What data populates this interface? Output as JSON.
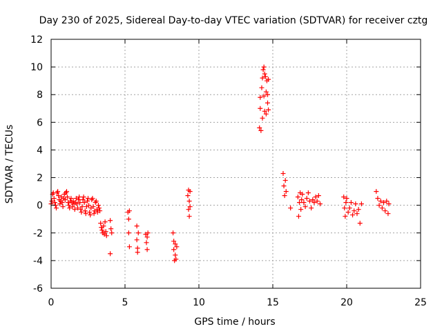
{
  "chart_data": {
    "type": "scatter",
    "title": "Day 230 of 2025, Sidereal Day-to-day VTEC variation (SDTVAR) for receiver cztg",
    "xlabel": "GPS time / hours",
    "ylabel": "SDTVAR / TECUs",
    "xlim": [
      0,
      25
    ],
    "ylim": [
      -6,
      12
    ],
    "x_ticks": [
      0,
      5,
      10,
      15,
      20,
      25
    ],
    "y_ticks": [
      -6,
      -4,
      -2,
      0,
      2,
      4,
      6,
      8,
      10,
      12
    ],
    "grid": true,
    "marker": "+",
    "series": [
      {
        "name": "SDTVAR",
        "color": "#ff0000",
        "points": [
          [
            0.0,
            0.1
          ],
          [
            0.05,
            0.3
          ],
          [
            0.1,
            0.8
          ],
          [
            0.15,
            0.9
          ],
          [
            0.2,
            0.5
          ],
          [
            0.25,
            0.2
          ],
          [
            0.3,
            0.0
          ],
          [
            0.35,
            -0.2
          ],
          [
            0.4,
            0.9
          ],
          [
            0.45,
            1.0
          ],
          [
            0.5,
            0.7
          ],
          [
            0.55,
            0.4
          ],
          [
            0.6,
            0.1
          ],
          [
            0.65,
            0.3
          ],
          [
            0.7,
            0.6
          ],
          [
            0.75,
            0.2
          ],
          [
            0.8,
            -0.1
          ],
          [
            0.85,
            0.5
          ],
          [
            0.9,
            0.8
          ],
          [
            0.95,
            0.4
          ],
          [
            1.0,
            0.9
          ],
          [
            1.05,
            1.0
          ],
          [
            1.1,
            0.6
          ],
          [
            1.15,
            0.2
          ],
          [
            1.2,
            0.0
          ],
          [
            1.25,
            -0.2
          ],
          [
            1.3,
            0.3
          ],
          [
            1.35,
            0.5
          ],
          [
            1.4,
            0.2
          ],
          [
            1.45,
            -0.1
          ],
          [
            1.5,
            0.3
          ],
          [
            1.55,
            0.1
          ],
          [
            1.6,
            -0.3
          ],
          [
            1.65,
            0.2
          ],
          [
            1.7,
            0.5
          ],
          [
            1.75,
            0.1
          ],
          [
            1.8,
            -0.2
          ],
          [
            1.85,
            0.4
          ],
          [
            1.9,
            0.6
          ],
          [
            1.95,
            0.2
          ],
          [
            2.0,
            -0.3
          ],
          [
            2.05,
            -0.5
          ],
          [
            2.1,
            -0.1
          ],
          [
            2.15,
            0.4
          ],
          [
            2.2,
            0.6
          ],
          [
            2.25,
            0.2
          ],
          [
            2.3,
            -0.4
          ],
          [
            2.35,
            -0.6
          ],
          [
            2.4,
            -0.1
          ],
          [
            2.45,
            0.3
          ],
          [
            2.5,
            0.5
          ],
          [
            2.55,
            0.0
          ],
          [
            2.6,
            -0.5
          ],
          [
            2.65,
            -0.7
          ],
          [
            2.7,
            -0.2
          ],
          [
            2.75,
            0.4
          ],
          [
            2.8,
            0.5
          ],
          [
            2.85,
            -0.1
          ],
          [
            2.9,
            -0.6
          ],
          [
            2.95,
            -0.4
          ],
          [
            3.0,
            0.2
          ],
          [
            3.05,
            0.3
          ],
          [
            3.1,
            -0.3
          ],
          [
            3.15,
            -0.5
          ],
          [
            3.2,
            0.0
          ],
          [
            3.25,
            -0.2
          ],
          [
            3.3,
            -0.4
          ],
          [
            3.35,
            -1.3
          ],
          [
            3.4,
            -1.6
          ],
          [
            3.45,
            -1.8
          ],
          [
            3.5,
            -2.0
          ],
          [
            3.55,
            -1.5
          ],
          [
            3.6,
            -2.1
          ],
          [
            3.65,
            -1.2
          ],
          [
            3.7,
            -1.9
          ],
          [
            3.75,
            -2.2
          ],
          [
            4.0,
            -1.1
          ],
          [
            4.05,
            -1.7
          ],
          [
            4.1,
            -2.0
          ],
          [
            4.0,
            -3.5
          ],
          [
            5.2,
            -0.5
          ],
          [
            5.25,
            -1.0
          ],
          [
            5.25,
            -2.0
          ],
          [
            5.3,
            -0.4
          ],
          [
            5.3,
            -3.0
          ],
          [
            5.8,
            -1.5
          ],
          [
            5.8,
            -2.5
          ],
          [
            5.85,
            -3.1
          ],
          [
            5.85,
            -3.4
          ],
          [
            5.9,
            -2.0
          ],
          [
            6.4,
            -2.1
          ],
          [
            6.45,
            -2.7
          ],
          [
            6.5,
            -2.3
          ],
          [
            6.5,
            -3.2
          ],
          [
            6.55,
            -2.0
          ],
          [
            8.25,
            -2.0
          ],
          [
            8.3,
            -2.6
          ],
          [
            8.3,
            -3.2
          ],
          [
            8.35,
            -4.0
          ],
          [
            8.4,
            -3.6
          ],
          [
            8.4,
            -2.8
          ],
          [
            8.45,
            -3.9
          ],
          [
            8.5,
            -3.0
          ],
          [
            9.25,
            0.7
          ],
          [
            9.3,
            -0.3
          ],
          [
            9.3,
            1.1
          ],
          [
            9.35,
            -0.8
          ],
          [
            9.35,
            0.3
          ],
          [
            9.4,
            -0.1
          ],
          [
            9.4,
            1.0
          ],
          [
            14.1,
            5.6
          ],
          [
            14.15,
            7.0
          ],
          [
            14.15,
            7.8
          ],
          [
            14.2,
            5.4
          ],
          [
            14.25,
            8.5
          ],
          [
            14.3,
            9.2
          ],
          [
            14.3,
            6.3
          ],
          [
            14.35,
            9.8
          ],
          [
            14.4,
            10.0
          ],
          [
            14.4,
            7.9
          ],
          [
            14.45,
            9.5
          ],
          [
            14.45,
            6.8
          ],
          [
            14.5,
            9.3
          ],
          [
            14.55,
            8.2
          ],
          [
            14.55,
            6.6
          ],
          [
            14.6,
            9.0
          ],
          [
            14.65,
            7.4
          ],
          [
            14.65,
            8.0
          ],
          [
            14.7,
            6.9
          ],
          [
            14.7,
            9.1
          ],
          [
            15.7,
            2.3
          ],
          [
            15.75,
            1.4
          ],
          [
            15.8,
            0.7
          ],
          [
            15.85,
            1.8
          ],
          [
            15.9,
            1.0
          ],
          [
            16.2,
            -0.2
          ],
          [
            16.7,
            0.6
          ],
          [
            16.75,
            -0.8
          ],
          [
            16.8,
            0.2
          ],
          [
            16.85,
            0.9
          ],
          [
            16.9,
            -0.3
          ],
          [
            16.95,
            0.4
          ],
          [
            17.0,
            0.8
          ],
          [
            17.1,
            0.2
          ],
          [
            17.2,
            -0.1
          ],
          [
            17.3,
            0.5
          ],
          [
            17.4,
            0.9
          ],
          [
            17.5,
            0.3
          ],
          [
            17.6,
            -0.2
          ],
          [
            17.7,
            0.4
          ],
          [
            17.8,
            0.2
          ],
          [
            17.9,
            0.6
          ],
          [
            18.0,
            0.3
          ],
          [
            18.1,
            0.7
          ],
          [
            18.2,
            0.1
          ],
          [
            19.8,
            0.6
          ],
          [
            19.85,
            -0.2
          ],
          [
            19.9,
            -0.8
          ],
          [
            19.95,
            0.2
          ],
          [
            20.0,
            0.5
          ],
          [
            20.1,
            -0.5
          ],
          [
            20.2,
            -0.2
          ],
          [
            20.3,
            0.2
          ],
          [
            20.4,
            -0.7
          ],
          [
            20.5,
            -0.4
          ],
          [
            20.6,
            0.1
          ],
          [
            20.7,
            -0.6
          ],
          [
            20.8,
            -0.3
          ],
          [
            20.9,
            -1.3
          ],
          [
            21.0,
            0.1
          ],
          [
            22.0,
            1.0
          ],
          [
            22.1,
            0.5
          ],
          [
            22.2,
            0.0
          ],
          [
            22.3,
            0.3
          ],
          [
            22.4,
            -0.2
          ],
          [
            22.5,
            0.2
          ],
          [
            22.6,
            -0.4
          ],
          [
            22.7,
            0.3
          ],
          [
            22.8,
            -0.6
          ],
          [
            22.85,
            0.1
          ]
        ]
      }
    ]
  }
}
